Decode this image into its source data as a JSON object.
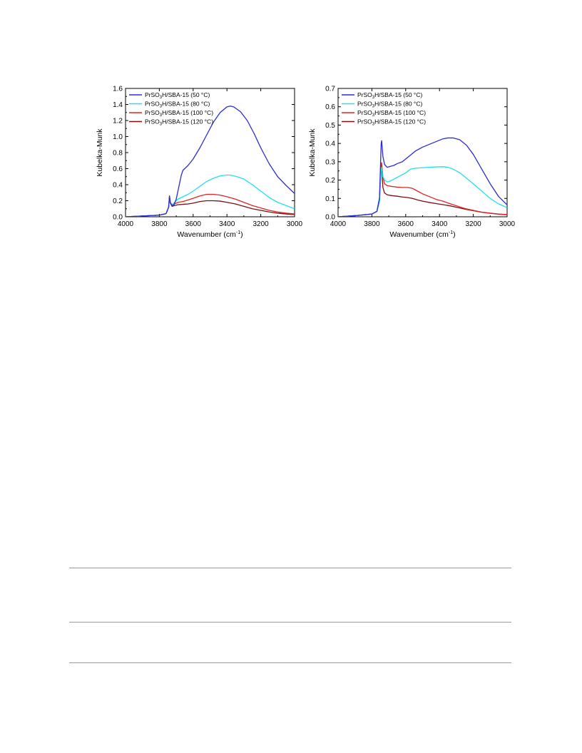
{
  "chart_data": [
    {
      "type": "line",
      "xlabel": "Wavenumber (cm",
      "xlabel_sup": "-1",
      "xlabel_close": ")",
      "ylabel": "Kubelka-Munk",
      "xlim": [
        4000,
        3000
      ],
      "x_reversed": true,
      "ylim": [
        0,
        1.6
      ],
      "xticks": [
        "4000",
        "3800",
        "3600",
        "3400",
        "3200",
        "3000"
      ],
      "yticks": [
        "0.0",
        "0.2",
        "0.4",
        "0.6",
        "0.8",
        "1.0",
        "1.2",
        "1.4",
        "1.6"
      ],
      "legend_position": "top-left",
      "series": [
        {
          "name_pre": "PrSO",
          "name_sub": "3",
          "name_post": "H/SBA-15 (50 °C)",
          "color": "#2b2bd6",
          "points": [
            [
              4000,
              0
            ],
            [
              3900,
              0.01
            ],
            [
              3800,
              0.02
            ],
            [
              3760,
              0.04
            ],
            [
              3745,
              0.12
            ],
            [
              3740,
              0.26
            ],
            [
              3735,
              0.18
            ],
            [
              3725,
              0.14
            ],
            [
              3715,
              0.14
            ],
            [
              3700,
              0.22
            ],
            [
              3690,
              0.32
            ],
            [
              3680,
              0.42
            ],
            [
              3670,
              0.52
            ],
            [
              3660,
              0.58
            ],
            [
              3650,
              0.6
            ],
            [
              3630,
              0.64
            ],
            [
              3600,
              0.72
            ],
            [
              3560,
              0.86
            ],
            [
              3520,
              1.02
            ],
            [
              3480,
              1.18
            ],
            [
              3440,
              1.3
            ],
            [
              3400,
              1.37
            ],
            [
              3380,
              1.38
            ],
            [
              3360,
              1.37
            ],
            [
              3320,
              1.31
            ],
            [
              3280,
              1.2
            ],
            [
              3240,
              1.04
            ],
            [
              3200,
              0.86
            ],
            [
              3150,
              0.66
            ],
            [
              3100,
              0.5
            ],
            [
              3050,
              0.39
            ],
            [
              3000,
              0.29
            ]
          ]
        },
        {
          "name_pre": "PrSO",
          "name_sub": "3",
          "name_post": "H/SBA-15 (80 °C)",
          "color": "#22e0e8",
          "points": [
            [
              4000,
              0
            ],
            [
              3900,
              0.01
            ],
            [
              3800,
              0.02
            ],
            [
              3760,
              0.04
            ],
            [
              3745,
              0.12
            ],
            [
              3740,
              0.25
            ],
            [
              3735,
              0.18
            ],
            [
              3725,
              0.15
            ],
            [
              3710,
              0.18
            ],
            [
              3690,
              0.22
            ],
            [
              3660,
              0.25
            ],
            [
              3630,
              0.28
            ],
            [
              3600,
              0.32
            ],
            [
              3560,
              0.38
            ],
            [
              3520,
              0.44
            ],
            [
              3480,
              0.48
            ],
            [
              3440,
              0.51
            ],
            [
              3400,
              0.52
            ],
            [
              3380,
              0.52
            ],
            [
              3340,
              0.5
            ],
            [
              3300,
              0.47
            ],
            [
              3250,
              0.4
            ],
            [
              3200,
              0.32
            ],
            [
              3150,
              0.24
            ],
            [
              3100,
              0.18
            ],
            [
              3050,
              0.14
            ],
            [
              3000,
              0.1
            ]
          ]
        },
        {
          "name_pre": "PrSO",
          "name_sub": "3",
          "name_post": "H/SBA-15 (100 °C)",
          "color": "#e02424",
          "points": [
            [
              4000,
              0
            ],
            [
              3900,
              0.01
            ],
            [
              3800,
              0.02
            ],
            [
              3760,
              0.04
            ],
            [
              3745,
              0.12
            ],
            [
              3740,
              0.26
            ],
            [
              3735,
              0.18
            ],
            [
              3725,
              0.14
            ],
            [
              3710,
              0.16
            ],
            [
              3690,
              0.18
            ],
            [
              3660,
              0.19
            ],
            [
              3630,
              0.21
            ],
            [
              3600,
              0.23
            ],
            [
              3560,
              0.26
            ],
            [
              3520,
              0.28
            ],
            [
              3480,
              0.28
            ],
            [
              3440,
              0.27
            ],
            [
              3400,
              0.25
            ],
            [
              3350,
              0.22
            ],
            [
              3300,
              0.18
            ],
            [
              3250,
              0.14
            ],
            [
              3200,
              0.11
            ],
            [
              3150,
              0.08
            ],
            [
              3100,
              0.06
            ],
            [
              3050,
              0.045
            ],
            [
              3000,
              0.035
            ]
          ]
        },
        {
          "name_pre": "PrSO",
          "name_sub": "3",
          "name_post": "H/SBA-15 (120 °C)",
          "color": "#7a0f12",
          "points": [
            [
              4000,
              0
            ],
            [
              3900,
              0.01
            ],
            [
              3800,
              0.02
            ],
            [
              3760,
              0.04
            ],
            [
              3745,
              0.12
            ],
            [
              3740,
              0.24
            ],
            [
              3735,
              0.17
            ],
            [
              3725,
              0.13
            ],
            [
              3710,
              0.14
            ],
            [
              3690,
              0.15
            ],
            [
              3660,
              0.155
            ],
            [
              3630,
              0.16
            ],
            [
              3600,
              0.17
            ],
            [
              3560,
              0.19
            ],
            [
              3520,
              0.2
            ],
            [
              3480,
              0.2
            ],
            [
              3440,
              0.195
            ],
            [
              3400,
              0.18
            ],
            [
              3350,
              0.16
            ],
            [
              3300,
              0.13
            ],
            [
              3250,
              0.1
            ],
            [
              3200,
              0.08
            ],
            [
              3150,
              0.06
            ],
            [
              3100,
              0.045
            ],
            [
              3050,
              0.035
            ],
            [
              3000,
              0.028
            ]
          ]
        }
      ]
    },
    {
      "type": "line",
      "xlabel": "Wavenumber (cm",
      "xlabel_sup": "-1",
      "xlabel_close": ")",
      "ylabel": "Kubelka-Munk",
      "xlim": [
        4000,
        3000
      ],
      "x_reversed": true,
      "ylim": [
        0,
        0.7
      ],
      "xticks": [
        "4000",
        "3800",
        "3600",
        "3400",
        "3200",
        "3000"
      ],
      "yticks": [
        "0.0",
        "0.1",
        "0.2",
        "0.3",
        "0.4",
        "0.5",
        "0.6",
        "0.7"
      ],
      "legend_position": "top-left",
      "series": [
        {
          "name_pre": "PrSO",
          "name_sub": "3",
          "name_post": "H/SBA-15 (50 °C)",
          "color": "#2b2bd6",
          "points": [
            [
              4000,
              0
            ],
            [
              3900,
              0.006
            ],
            [
              3800,
              0.015
            ],
            [
              3770,
              0.03
            ],
            [
              3755,
              0.1
            ],
            [
              3745,
              0.4
            ],
            [
              3742,
              0.415
            ],
            [
              3735,
              0.33
            ],
            [
              3725,
              0.285
            ],
            [
              3710,
              0.27
            ],
            [
              3690,
              0.275
            ],
            [
              3670,
              0.28
            ],
            [
              3650,
              0.29
            ],
            [
              3620,
              0.3
            ],
            [
              3580,
              0.33
            ],
            [
              3540,
              0.36
            ],
            [
              3500,
              0.38
            ],
            [
              3460,
              0.395
            ],
            [
              3420,
              0.41
            ],
            [
              3380,
              0.425
            ],
            [
              3350,
              0.43
            ],
            [
              3320,
              0.43
            ],
            [
              3280,
              0.42
            ],
            [
              3240,
              0.39
            ],
            [
              3200,
              0.34
            ],
            [
              3150,
              0.26
            ],
            [
              3100,
              0.18
            ],
            [
              3050,
              0.11
            ],
            [
              3000,
              0.065
            ]
          ]
        },
        {
          "name_pre": "PrSO",
          "name_sub": "3",
          "name_post": "H/SBA-15 (80 °C)",
          "color": "#22e0e8",
          "points": [
            [
              4000,
              0
            ],
            [
              3900,
              0.006
            ],
            [
              3800,
              0.015
            ],
            [
              3770,
              0.03
            ],
            [
              3755,
              0.08
            ],
            [
              3745,
              0.26
            ],
            [
              3742,
              0.27
            ],
            [
              3735,
              0.22
            ],
            [
              3725,
              0.2
            ],
            [
              3710,
              0.19
            ],
            [
              3690,
              0.195
            ],
            [
              3660,
              0.21
            ],
            [
              3630,
              0.225
            ],
            [
              3600,
              0.24
            ],
            [
              3570,
              0.26
            ],
            [
              3540,
              0.265
            ],
            [
              3500,
              0.268
            ],
            [
              3460,
              0.27
            ],
            [
              3420,
              0.272
            ],
            [
              3380,
              0.273
            ],
            [
              3350,
              0.27
            ],
            [
              3320,
              0.26
            ],
            [
              3280,
              0.24
            ],
            [
              3240,
              0.21
            ],
            [
              3200,
              0.18
            ],
            [
              3150,
              0.14
            ],
            [
              3100,
              0.1
            ],
            [
              3050,
              0.07
            ],
            [
              3000,
              0.05
            ]
          ]
        },
        {
          "name_pre": "PrSO",
          "name_sub": "3",
          "name_post": "H/SBA-15 (100 °C)",
          "color": "#e02424",
          "points": [
            [
              4000,
              0
            ],
            [
              3900,
              0.006
            ],
            [
              3800,
              0.015
            ],
            [
              3770,
              0.03
            ],
            [
              3755,
              0.1
            ],
            [
              3745,
              0.28
            ],
            [
              3742,
              0.295
            ],
            [
              3735,
              0.22
            ],
            [
              3725,
              0.18
            ],
            [
              3710,
              0.17
            ],
            [
              3680,
              0.165
            ],
            [
              3650,
              0.162
            ],
            [
              3620,
              0.16
            ],
            [
              3590,
              0.16
            ],
            [
              3560,
              0.155
            ],
            [
              3530,
              0.14
            ],
            [
              3500,
              0.125
            ],
            [
              3460,
              0.11
            ],
            [
              3420,
              0.095
            ],
            [
              3380,
              0.085
            ],
            [
              3340,
              0.072
            ],
            [
              3300,
              0.06
            ],
            [
              3250,
              0.045
            ],
            [
              3200,
              0.035
            ],
            [
              3150,
              0.025
            ],
            [
              3100,
              0.02
            ],
            [
              3050,
              0.015
            ],
            [
              3000,
              0.012
            ]
          ]
        },
        {
          "name_pre": "PrSO",
          "name_sub": "3",
          "name_post": "H/SBA-15 (120 °C)",
          "color": "#7a0f12",
          "points": [
            [
              4000,
              0
            ],
            [
              3900,
              0.006
            ],
            [
              3800,
              0.015
            ],
            [
              3770,
              0.03
            ],
            [
              3755,
              0.1
            ],
            [
              3745,
              0.26
            ],
            [
              3742,
              0.28
            ],
            [
              3735,
              0.16
            ],
            [
              3725,
              0.13
            ],
            [
              3710,
              0.12
            ],
            [
              3680,
              0.115
            ],
            [
              3650,
              0.112
            ],
            [
              3620,
              0.108
            ],
            [
              3590,
              0.105
            ],
            [
              3560,
              0.1
            ],
            [
              3530,
              0.092
            ],
            [
              3500,
              0.085
            ],
            [
              3460,
              0.078
            ],
            [
              3420,
              0.072
            ],
            [
              3380,
              0.066
            ],
            [
              3340,
              0.06
            ],
            [
              3300,
              0.052
            ],
            [
              3250,
              0.042
            ],
            [
              3200,
              0.033
            ],
            [
              3150,
              0.025
            ],
            [
              3100,
              0.019
            ],
            [
              3050,
              0.014
            ],
            [
              3000,
              0.011
            ]
          ]
        }
      ]
    }
  ]
}
